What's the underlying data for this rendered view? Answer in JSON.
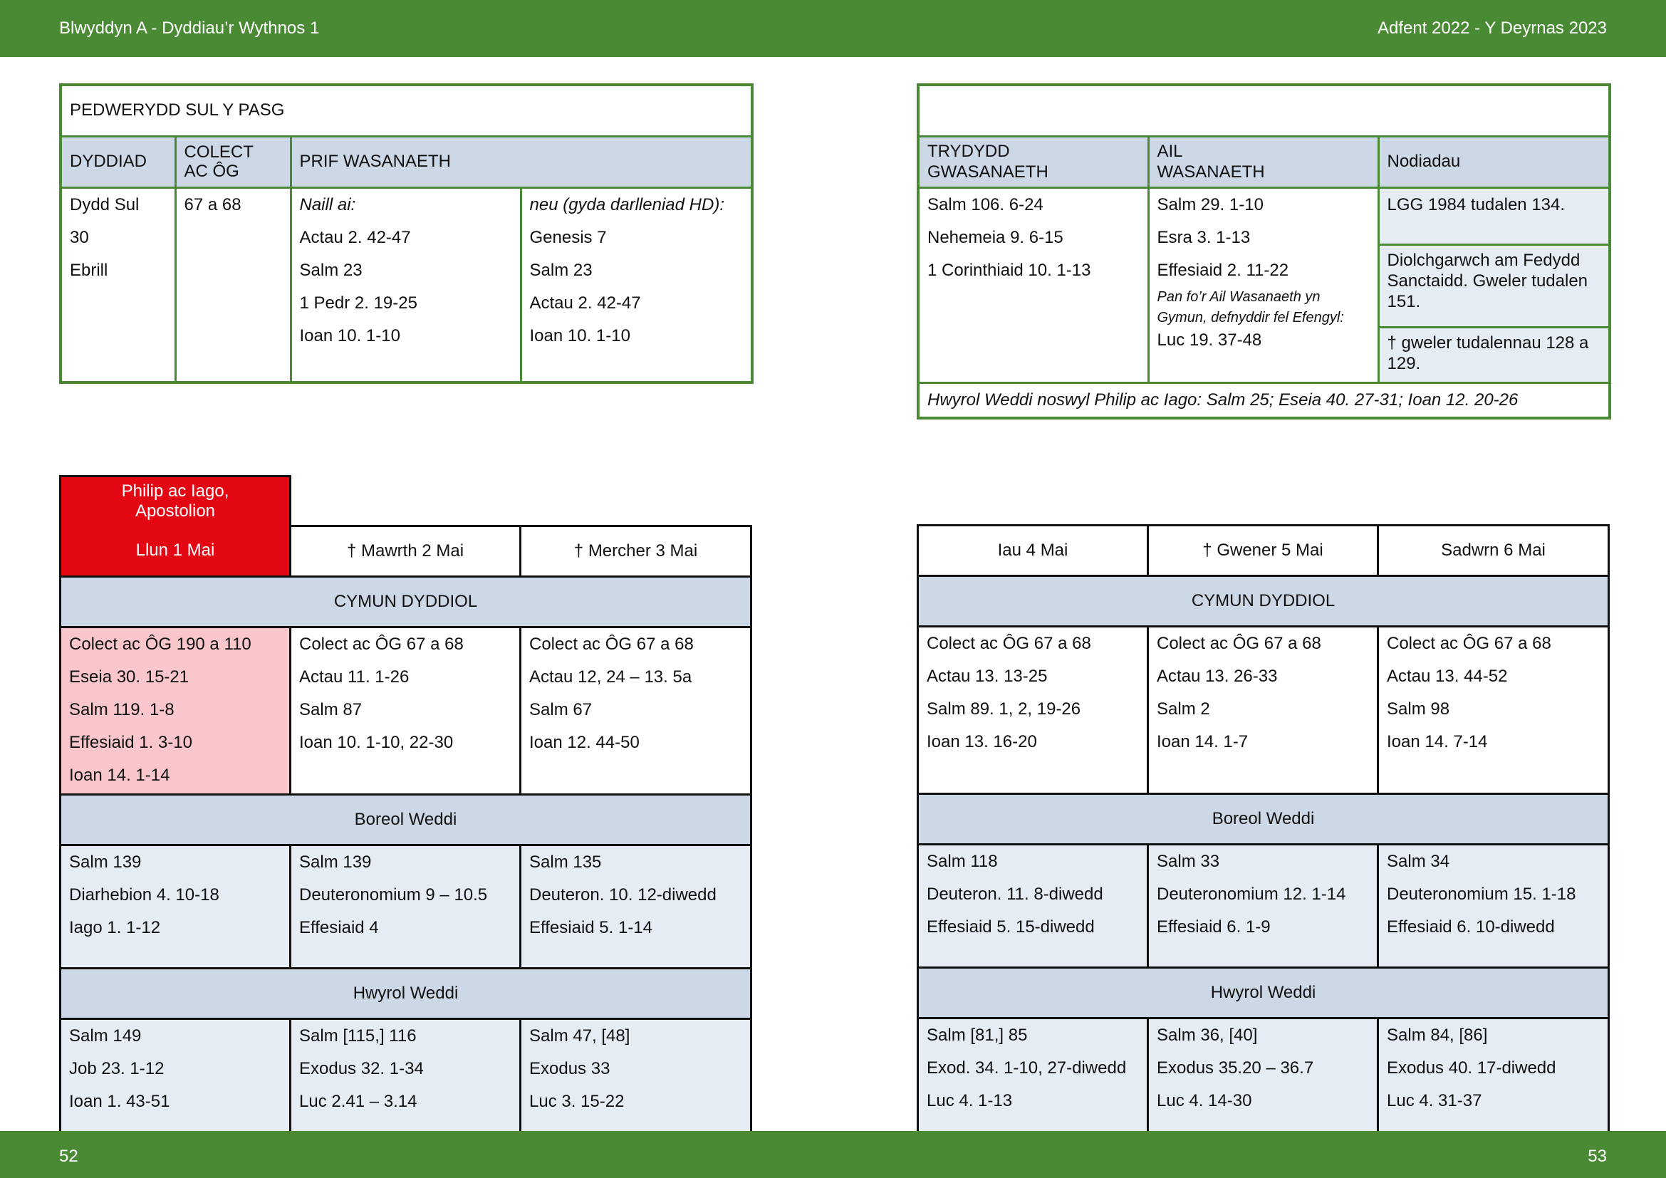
{
  "header": {
    "left": "Blwyddyn  A - Dyddiau’r Wythnos 1",
    "right": "Adfent  2022 - Y Deyrnas 2023"
  },
  "footer": {
    "left_page": "52",
    "right_page": "53"
  },
  "sunday": {
    "title": "PEDWERYDD SUL Y PASG",
    "col_date": "DYDDIAD",
    "col_collect_1": "COLECT",
    "col_collect_2": "AC ÔG",
    "col_main": "PRIF WASANAETH",
    "date": [
      "Dydd Sul",
      "30",
      "Ebrill"
    ],
    "collect": "67 a 68",
    "option_a": [
      "Naill ai:",
      "Actau 2. 42-47",
      "Salm 23",
      "1 Pedr 2. 19-25",
      "Ioan 10. 1-10"
    ],
    "option_b": [
      "neu (gyda darlleniad HD):",
      "Genesis 7",
      "Salm 23",
      "Actau 2. 42-47",
      "Ioan 10. 1-10"
    ],
    "col_third_1": "TRYDYDD",
    "col_third_2": "GWASANAETH",
    "col_second_1": "AIL",
    "col_second_2": "WASANAETH",
    "col_notes": "Nodiadau",
    "third": [
      "Salm 106. 6-24",
      "Nehemeia 9. 6-15",
      "1 Corinthiaid 10. 1-13"
    ],
    "second": [
      "Salm 29. 1-10",
      "Esra 3. 1-13",
      "Effesiaid 2. 11-22"
    ],
    "second_note": "Pan fo’r Ail Wasanaeth yn Gymun, defnyddir fel Efengyl:",
    "second_gospel": "Luc 19. 37-48",
    "notes": [
      "LGG 1984 tudalen 134.",
      "Diolchgarwch am Fedydd Sanctaidd. Gweler tudalen 151.",
      "†  gweler tudalennau 128 a 129."
    ],
    "eve": "Hwyrol Weddi noswyl Philip ac Iago: Salm 25;  Eseia 40. 27-31;  Ioan 12. 20-26"
  },
  "sections": {
    "communion": "CYMUN DYDDIOL",
    "morning": "Boreol Weddi",
    "evening": "Hwyrol Weddi"
  },
  "feast": {
    "name_1": "Philip ac Iago,",
    "name_2": "Apostolion",
    "date": "Llun 1 Mai"
  },
  "days": [
    {
      "label": "Llun 1 Mai",
      "communion": [
        "Colect ac ÔG 190 a 110",
        "Eseia 30. 15-21",
        "Salm 119. 1-8",
        "Effesiaid 1. 3-10",
        "Ioan 14. 1-14"
      ],
      "morning": [
        "Salm 139",
        "Diarhebion 4. 10-18",
        "Iago 1. 1-12"
      ],
      "evening": [
        "Salm 149",
        "Job 23. 1-12",
        "Ioan 1. 43-51"
      ]
    },
    {
      "label": "† Mawrth 2 Mai",
      "communion": [
        "Colect ac ÔG 67 a 68",
        "Actau 11. 1-26",
        "Salm 87",
        "Ioan 10. 1-10, 22-30"
      ],
      "morning": [
        "Salm 139",
        "Deuteronomium 9 – 10.5",
        "Effesiaid 4"
      ],
      "evening": [
        "Salm [115,] 116",
        "Exodus 32. 1-34",
        "Luc 2.41 – 3.14"
      ]
    },
    {
      "label": "† Mercher 3 Mai",
      "communion": [
        "Colect ac ÔG 67 a 68",
        "Actau 12, 24 – 13. 5a",
        "Salm 67",
        "Ioan 12. 44-50"
      ],
      "morning": [
        "Salm 135",
        "Deuteron. 10. 12-diwedd",
        "Effesiaid 5. 1-14"
      ],
      "evening": [
        "Salm 47, [48]",
        "Exodus 33",
        "Luc 3. 15-22"
      ]
    },
    {
      "label": "Iau 4 Mai",
      "communion": [
        "Colect ac ÔG 67 a 68",
        "Actau 13. 13-25",
        "Salm 89. 1, 2, 19-26",
        "Ioan 13. 16-20"
      ],
      "morning": [
        "Salm 118",
        "Deuteron. 11. 8-diwedd",
        "Effesiaid 5. 15-diwedd"
      ],
      "evening": [
        "Salm [81,] 85",
        "Exod. 34. 1-10, 27-diwedd",
        "Luc 4. 1-13"
      ]
    },
    {
      "label": "† Gwener 5 Mai",
      "communion": [
        "Colect ac ÔG 67 a 68",
        "Actau 13. 26-33",
        "Salm 2",
        "Ioan 14. 1-7"
      ],
      "morning": [
        "Salm 33",
        "Deuteronomium 12. 1-14",
        "Effesiaid 6. 1-9"
      ],
      "evening": [
        "Salm 36, [40]",
        "Exodus 35.20 – 36.7",
        "Luc 4. 14-30"
      ]
    },
    {
      "label": "Sadwrn 6 Mai",
      "communion": [
        "Colect ac ÔG 67 a 68",
        "Actau 13. 44-52",
        "Salm 98",
        "Ioan 14. 7-14"
      ],
      "morning": [
        "Salm 34",
        "Deuteronomium 15. 1-18",
        "Effesiaid 6. 10-diwedd"
      ],
      "evening": [
        "Salm 84, [86]",
        "Exodus 40. 17-diwedd",
        "Luc 4. 31-37"
      ]
    }
  ]
}
